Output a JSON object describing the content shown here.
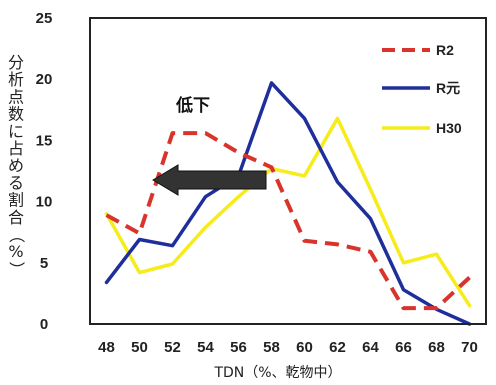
{
  "chart_data": {
    "type": "line",
    "title": "",
    "xlabel": "TDN（%、乾物中）",
    "ylabel": "分析点数に占める割合（%）",
    "x": [
      48,
      50,
      52,
      54,
      56,
      58,
      60,
      62,
      64,
      66,
      68,
      70
    ],
    "xlim": [
      47,
      71
    ],
    "ylim": [
      0,
      25
    ],
    "yticks": [
      0,
      5,
      10,
      15,
      20,
      25
    ],
    "grid": false,
    "legend_position": "top-right",
    "annotation": {
      "text": "低下",
      "arrow": "left"
    },
    "series": [
      {
        "name": "R2",
        "color": "#d9342b",
        "style": "dashed",
        "values": [
          8.9,
          7.4,
          15.6,
          15.6,
          14.0,
          12.8,
          6.8,
          6.5,
          5.9,
          1.3,
          1.3,
          3.8
        ]
      },
      {
        "name": "R元",
        "color": "#1e2f9c",
        "style": "solid",
        "values": [
          3.4,
          6.9,
          6.4,
          10.4,
          12.1,
          19.7,
          16.8,
          11.6,
          8.6,
          2.8,
          1.2,
          0.0
        ]
      },
      {
        "name": "H30",
        "color": "#f5ec1a",
        "style": "solid",
        "values": [
          9.0,
          4.2,
          4.9,
          7.9,
          10.4,
          12.7,
          12.1,
          16.8,
          11.0,
          5.0,
          5.7,
          1.5
        ]
      }
    ]
  }
}
